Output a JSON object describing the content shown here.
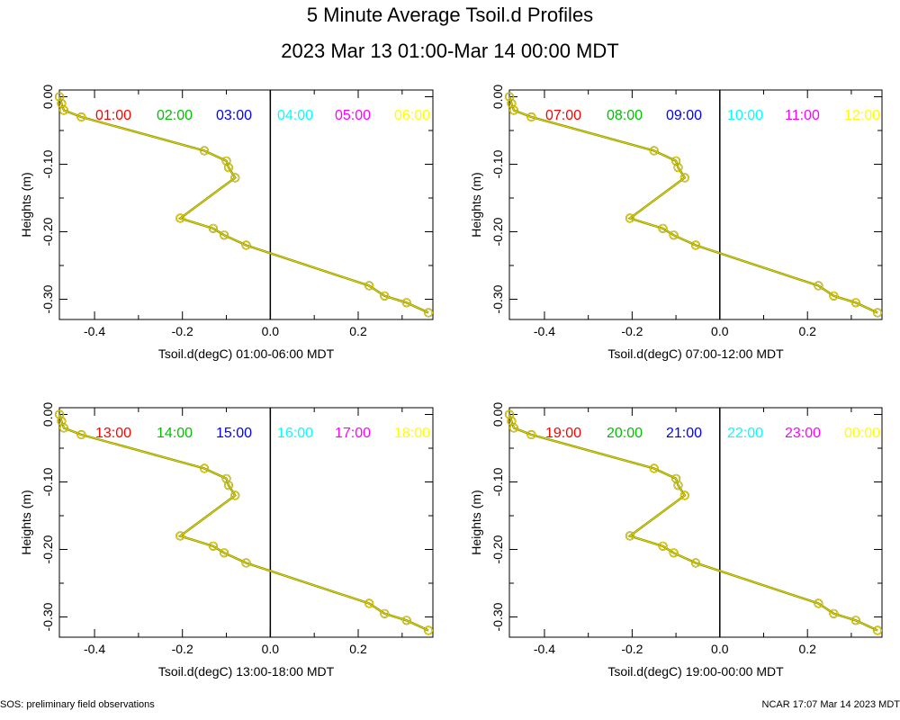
{
  "page": {
    "title": "5 Minute Average Tsoil.d Profiles",
    "subtitle": "2023 Mar 13 01:00-Mar 14 00:00 MDT",
    "footer_left": "SOS: preliminary field observations",
    "footer_right": "NCAR 17:07 Mar 14 2023 MDT"
  },
  "chart_data": [
    {
      "type": "line",
      "xlabel": "Tsoil.d(degC) 01:00-06:00 MDT",
      "ylabel": "Heights (m)",
      "xlim": [
        -0.48,
        0.37
      ],
      "ylim": [
        -0.33,
        0.01
      ],
      "xticks": [
        {
          "v": -0.4,
          "label": "-0.4"
        },
        {
          "v": -0.2,
          "label": "-0.2"
        },
        {
          "v": 0.0,
          "label": "0.0"
        },
        {
          "v": 0.2,
          "label": "0.2"
        }
      ],
      "yticks": [
        {
          "v": 0.0,
          "label": "0.00"
        },
        {
          "v": -0.1,
          "label": "-0.10"
        },
        {
          "v": -0.2,
          "label": "-0.20"
        },
        {
          "v": -0.3,
          "label": "-0.30"
        }
      ],
      "legend": [
        {
          "name": "01:00",
          "color": "#ff0000"
        },
        {
          "name": "02:00",
          "color": "#00c000"
        },
        {
          "name": "03:00",
          "color": "#0000ff"
        },
        {
          "name": "04:00",
          "color": "#00ffff"
        },
        {
          "name": "05:00",
          "color": "#ff00ff"
        },
        {
          "name": "06:00",
          "color": "#ffff00"
        }
      ],
      "profile": {
        "x": [
          -0.48,
          -0.475,
          -0.47,
          -0.43,
          -0.15,
          -0.1,
          -0.095,
          -0.08,
          -0.205,
          -0.13,
          -0.105,
          -0.055,
          0.225,
          0.26,
          0.31,
          0.36
        ],
        "y": [
          0.0,
          -0.01,
          -0.02,
          -0.03,
          -0.08,
          -0.095,
          -0.105,
          -0.12,
          -0.18,
          -0.195,
          -0.205,
          -0.22,
          -0.28,
          -0.295,
          -0.305,
          -0.32
        ]
      }
    },
    {
      "type": "line",
      "xlabel": "Tsoil.d(degC) 07:00-12:00 MDT",
      "ylabel": "Heights (m)",
      "xlim": [
        -0.48,
        0.37
      ],
      "ylim": [
        -0.33,
        0.01
      ],
      "xticks": [
        {
          "v": -0.4,
          "label": "-0.4"
        },
        {
          "v": -0.2,
          "label": "-0.2"
        },
        {
          "v": 0.0,
          "label": "0.0"
        },
        {
          "v": 0.2,
          "label": "0.2"
        }
      ],
      "yticks": [
        {
          "v": 0.0,
          "label": "0.00"
        },
        {
          "v": -0.1,
          "label": "-0.10"
        },
        {
          "v": -0.2,
          "label": "-0.20"
        },
        {
          "v": -0.3,
          "label": "-0.30"
        }
      ],
      "legend": [
        {
          "name": "07:00",
          "color": "#ff0000"
        },
        {
          "name": "08:00",
          "color": "#00c000"
        },
        {
          "name": "09:00",
          "color": "#0000ff"
        },
        {
          "name": "10:00",
          "color": "#00ffff"
        },
        {
          "name": "11:00",
          "color": "#ff00ff"
        },
        {
          "name": "12:00",
          "color": "#ffff00"
        }
      ],
      "profile": {
        "x": [
          -0.48,
          -0.475,
          -0.47,
          -0.43,
          -0.15,
          -0.1,
          -0.095,
          -0.08,
          -0.205,
          -0.13,
          -0.105,
          -0.055,
          0.225,
          0.26,
          0.31,
          0.36
        ],
        "y": [
          0.0,
          -0.01,
          -0.02,
          -0.03,
          -0.08,
          -0.095,
          -0.105,
          -0.12,
          -0.18,
          -0.195,
          -0.205,
          -0.22,
          -0.28,
          -0.295,
          -0.305,
          -0.32
        ]
      }
    },
    {
      "type": "line",
      "xlabel": "Tsoil.d(degC) 13:00-18:00 MDT",
      "ylabel": "Heights (m)",
      "xlim": [
        -0.48,
        0.37
      ],
      "ylim": [
        -0.33,
        0.01
      ],
      "xticks": [
        {
          "v": -0.4,
          "label": "-0.4"
        },
        {
          "v": -0.2,
          "label": "-0.2"
        },
        {
          "v": 0.0,
          "label": "0.0"
        },
        {
          "v": 0.2,
          "label": "0.2"
        }
      ],
      "yticks": [
        {
          "v": 0.0,
          "label": "0.00"
        },
        {
          "v": -0.1,
          "label": "-0.10"
        },
        {
          "v": -0.2,
          "label": "-0.20"
        },
        {
          "v": -0.3,
          "label": "-0.30"
        }
      ],
      "legend": [
        {
          "name": "13:00",
          "color": "#ff0000"
        },
        {
          "name": "14:00",
          "color": "#00c000"
        },
        {
          "name": "15:00",
          "color": "#0000ff"
        },
        {
          "name": "16:00",
          "color": "#00ffff"
        },
        {
          "name": "17:00",
          "color": "#ff00ff"
        },
        {
          "name": "18:00",
          "color": "#ffff00"
        }
      ],
      "profile": {
        "x": [
          -0.48,
          -0.475,
          -0.47,
          -0.43,
          -0.15,
          -0.1,
          -0.095,
          -0.08,
          -0.205,
          -0.13,
          -0.105,
          -0.055,
          0.225,
          0.26,
          0.31,
          0.36
        ],
        "y": [
          0.0,
          -0.01,
          -0.02,
          -0.03,
          -0.08,
          -0.095,
          -0.105,
          -0.12,
          -0.18,
          -0.195,
          -0.205,
          -0.22,
          -0.28,
          -0.295,
          -0.305,
          -0.32
        ]
      }
    },
    {
      "type": "line",
      "xlabel": "Tsoil.d(degC) 19:00-00:00 MDT",
      "ylabel": "Heights (m)",
      "xlim": [
        -0.48,
        0.37
      ],
      "ylim": [
        -0.33,
        0.01
      ],
      "xticks": [
        {
          "v": -0.4,
          "label": "-0.4"
        },
        {
          "v": -0.2,
          "label": "-0.2"
        },
        {
          "v": 0.0,
          "label": "0.0"
        },
        {
          "v": 0.2,
          "label": "0.2"
        }
      ],
      "yticks": [
        {
          "v": 0.0,
          "label": "0.00"
        },
        {
          "v": -0.1,
          "label": "-0.10"
        },
        {
          "v": -0.2,
          "label": "-0.20"
        },
        {
          "v": -0.3,
          "label": "-0.30"
        }
      ],
      "legend": [
        {
          "name": "19:00",
          "color": "#ff0000"
        },
        {
          "name": "20:00",
          "color": "#00c000"
        },
        {
          "name": "21:00",
          "color": "#0000ff"
        },
        {
          "name": "22:00",
          "color": "#00ffff"
        },
        {
          "name": "23:00",
          "color": "#ff00ff"
        },
        {
          "name": "00:00",
          "color": "#ffff00"
        }
      ],
      "profile": {
        "x": [
          -0.48,
          -0.475,
          -0.47,
          -0.43,
          -0.15,
          -0.1,
          -0.095,
          -0.08,
          -0.205,
          -0.13,
          -0.105,
          -0.055,
          0.225,
          0.26,
          0.31,
          0.36
        ],
        "y": [
          0.0,
          -0.01,
          -0.02,
          -0.03,
          -0.08,
          -0.095,
          -0.105,
          -0.12,
          -0.18,
          -0.195,
          -0.205,
          -0.22,
          -0.28,
          -0.295,
          -0.305,
          -0.32
        ]
      }
    }
  ]
}
